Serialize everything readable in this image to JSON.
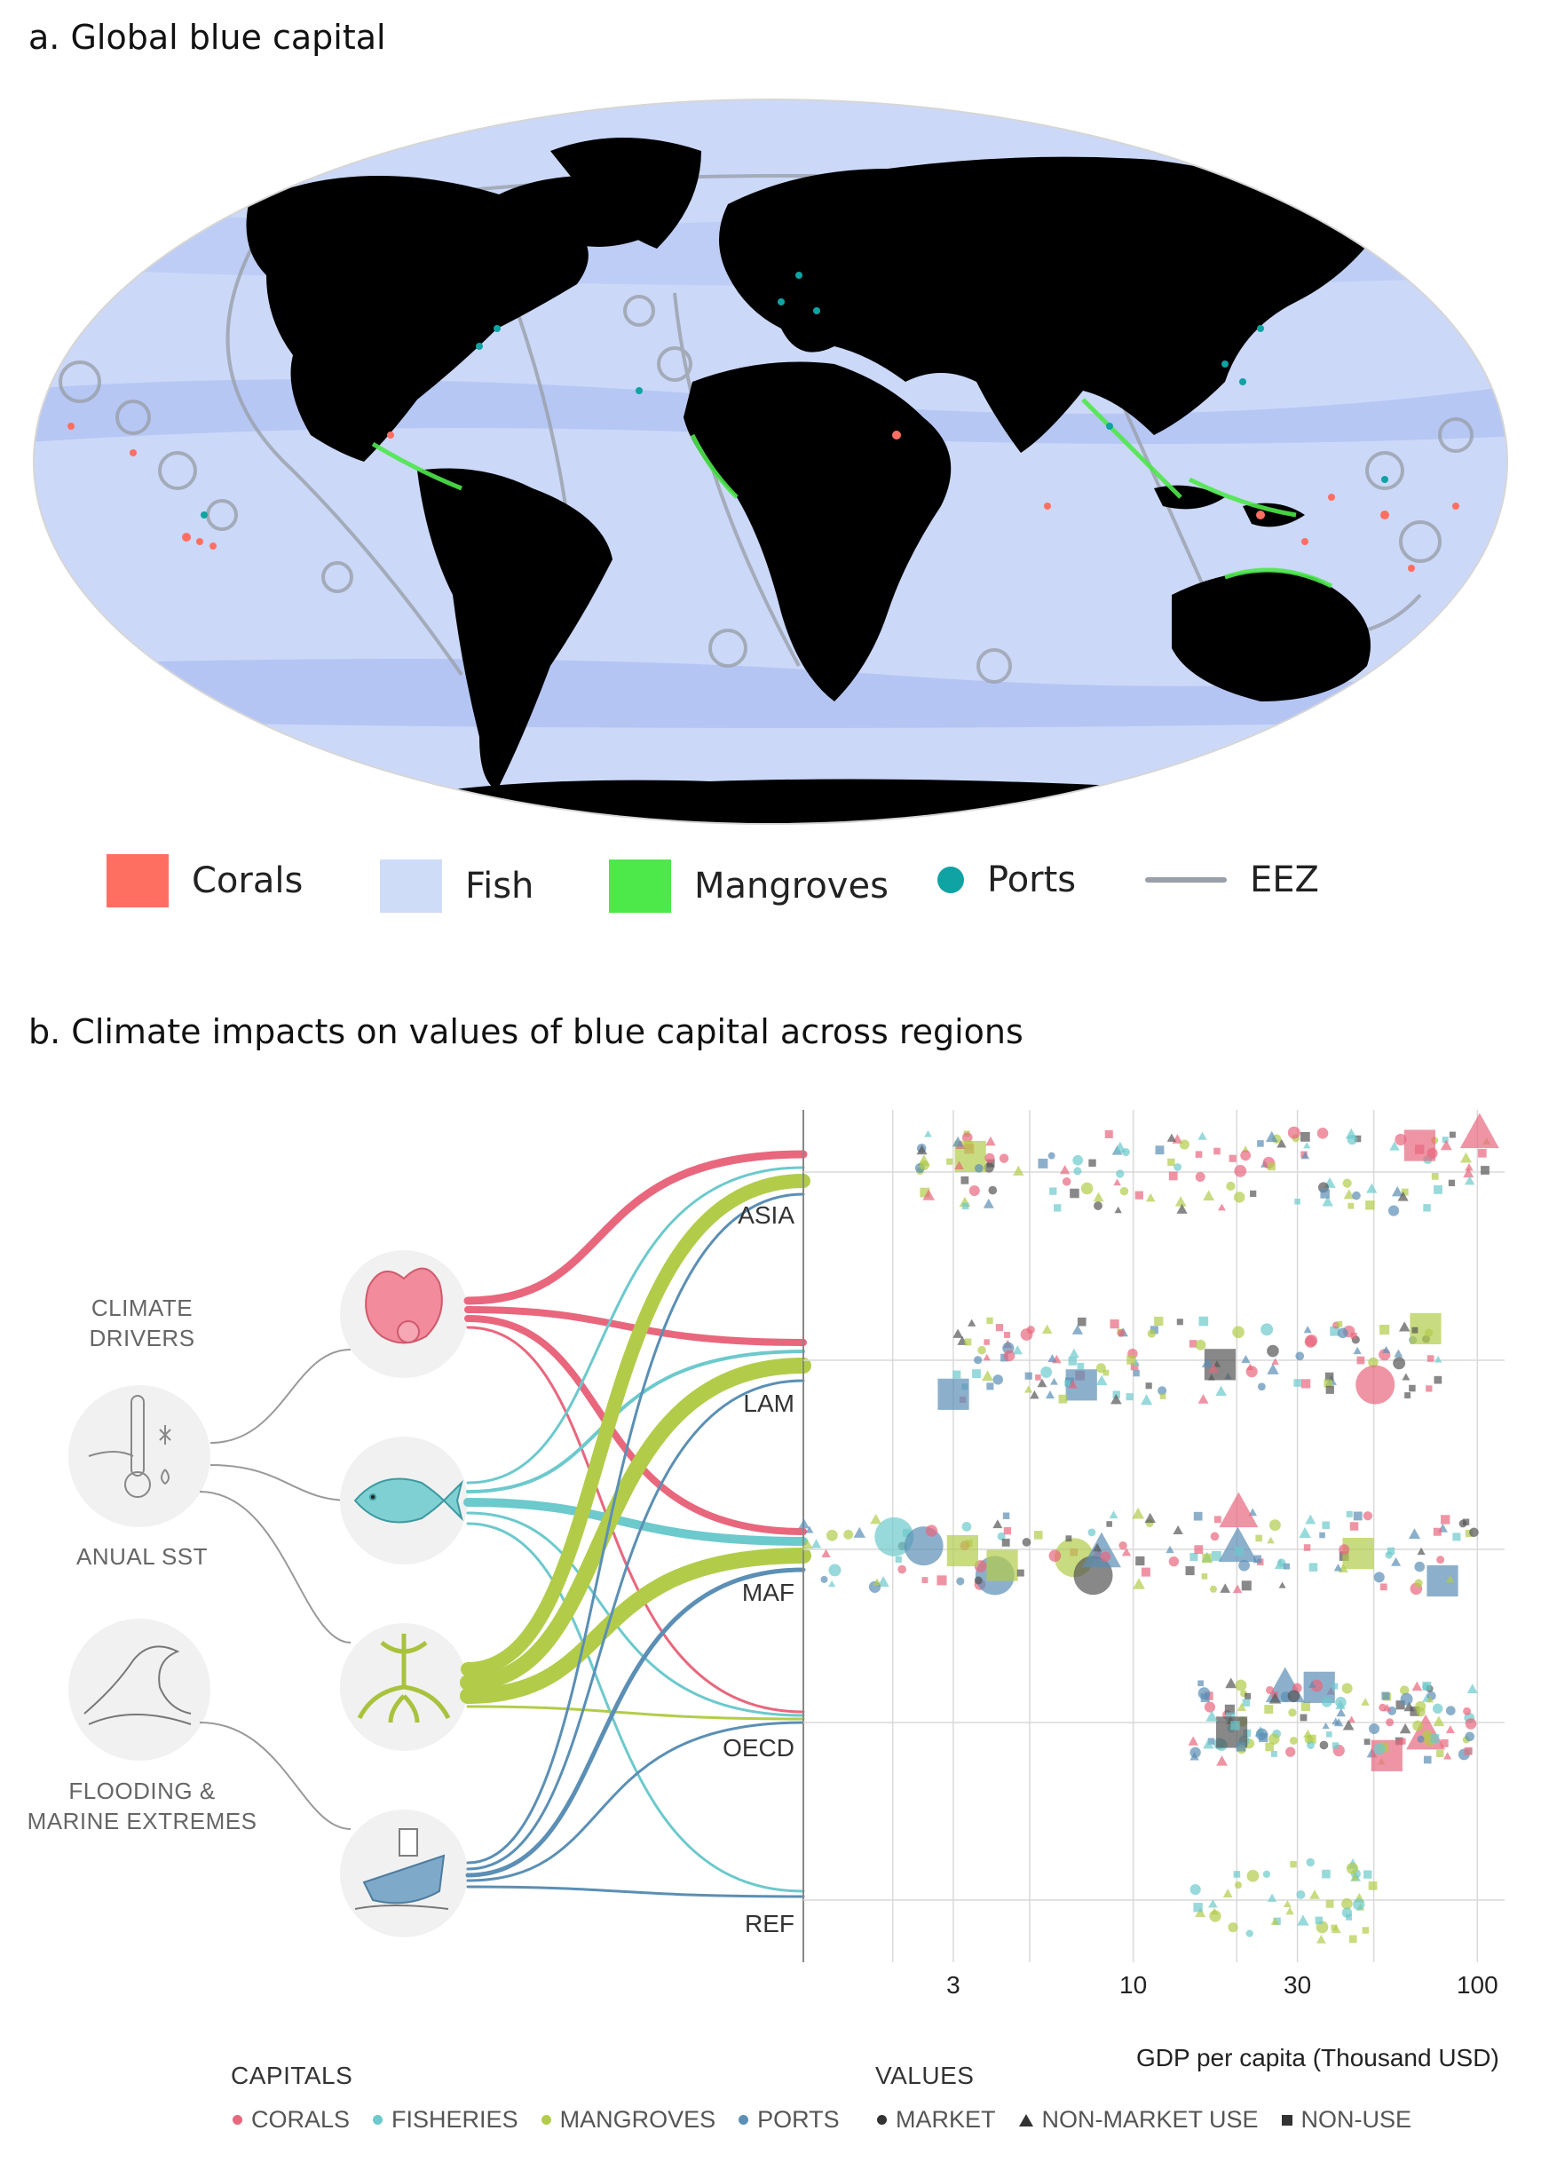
{
  "panel_a": {
    "title": "a. Global blue capital",
    "legend": [
      {
        "key": "corals",
        "label": "Corals",
        "color": "#ff6f61",
        "icon": "square-swatch"
      },
      {
        "key": "fish",
        "label": "Fish",
        "color": "#cfdcf8",
        "icon": "square-swatch"
      },
      {
        "key": "mangroves",
        "label": "Mangroves",
        "color": "#4de84a",
        "icon": "square-swatch"
      },
      {
        "key": "ports",
        "label": "Ports",
        "color": "#0fa3a3",
        "icon": "dot"
      },
      {
        "key": "eez",
        "label": "EEZ",
        "color": "#9aa0aa",
        "icon": "line"
      }
    ]
  },
  "panel_b": {
    "title": "b. Climate impacts on values of blue capital across regions",
    "drivers_heading": "CLIMATE DRIVERS",
    "drivers": [
      {
        "key": "sst",
        "label": "ANUAL SST",
        "icon": "thermometer-icon"
      },
      {
        "key": "flood",
        "label": "FLOODING & MARINE EXTREMES",
        "icon": "wave-icon"
      }
    ],
    "capitals_nodes": [
      {
        "key": "corals",
        "icon": "coral-icon",
        "color": "#e8677d"
      },
      {
        "key": "fisheries",
        "icon": "fish-icon",
        "color": "#6cc9cc"
      },
      {
        "key": "mangroves",
        "icon": "mangrove-icon",
        "color": "#b2cc4a"
      },
      {
        "key": "ports",
        "icon": "ship-icon",
        "color": "#5b8fb5"
      }
    ],
    "regions": [
      "ASIA",
      "LAM",
      "MAF",
      "OECD",
      "REF"
    ],
    "capitals_legend_title": "CAPITALS",
    "capitals_legend": [
      {
        "label": "CORALS",
        "color": "#e8677d"
      },
      {
        "label": "FISHERIES",
        "color": "#6cc9cc"
      },
      {
        "label": "MANGROVES",
        "color": "#b2cc4a"
      },
      {
        "label": "PORTS",
        "color": "#5b8fb5"
      }
    ],
    "values_legend_title": "VALUES",
    "values_legend": [
      {
        "label": "MARKET",
        "shape": "circle"
      },
      {
        "label": "NON-MARKET USE",
        "shape": "triangle"
      },
      {
        "label": "NON-USE",
        "shape": "square"
      }
    ]
  },
  "chart_data": {
    "type": "scatter",
    "xlabel": "GDP per capita (Thousand USD)",
    "x_scale": "log",
    "xlim": [
      1.1,
      120
    ],
    "x_ticks": [
      3,
      10,
      30,
      100
    ],
    "categories": [
      "ASIA",
      "LAM",
      "MAF",
      "OECD",
      "REF"
    ],
    "series": [
      {
        "region": "ASIA",
        "gdp_range": [
          2.4,
          110
        ]
      },
      {
        "region": "LAM",
        "gdp_range": [
          3,
          80
        ]
      },
      {
        "region": "MAF",
        "gdp_range": [
          1.1,
          100
        ]
      },
      {
        "region": "OECD",
        "gdp_range": [
          14,
          100
        ]
      },
      {
        "region": "REF",
        "gdp_range": [
          14,
          50
        ]
      }
    ],
    "grid": true
  }
}
